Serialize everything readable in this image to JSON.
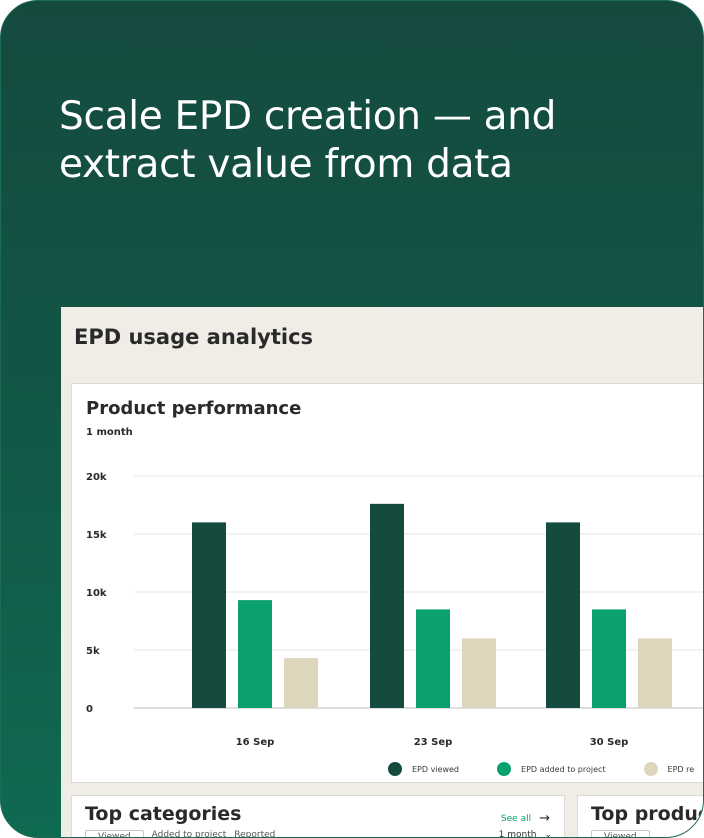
{
  "hero": {
    "title": "Scale EPD creation — and extract value from data"
  },
  "panel": {
    "title": "EPD usage analytics"
  },
  "performance": {
    "title": "Product performance",
    "period": "1 month"
  },
  "chart_data": {
    "type": "bar",
    "title": "Product performance",
    "categories": [
      "16 Sep",
      "23 Sep",
      "30 Sep"
    ],
    "series": [
      {
        "name": "EPD viewed",
        "color": "#154a3f",
        "values": [
          16000,
          17600,
          16000
        ]
      },
      {
        "name": "EPD added to project",
        "color": "#0aa070",
        "values": [
          9300,
          8500,
          8500
        ]
      },
      {
        "name": "EPD re",
        "color": "#ded6bc",
        "values": [
          4300,
          6000,
          6000
        ]
      }
    ],
    "y_ticks": [
      "20k",
      "15k",
      "10k",
      "5k",
      "0"
    ],
    "ylim": [
      0,
      20000
    ],
    "grid": true,
    "legend_position": "bottom"
  },
  "legend": [
    {
      "label": "EPD viewed",
      "color": "#154a3f"
    },
    {
      "label": "EPD added to project",
      "color": "#0aa070"
    },
    {
      "label": "EPD re",
      "color": "#ded6bc"
    }
  ],
  "top_categories": {
    "title": "Top categories",
    "see_all": "See all",
    "filters": [
      "Viewed",
      "Added to project",
      "Reported"
    ],
    "period": "1 month"
  },
  "top_products": {
    "title": "Top produc",
    "filters": [
      "Viewed"
    ]
  }
}
